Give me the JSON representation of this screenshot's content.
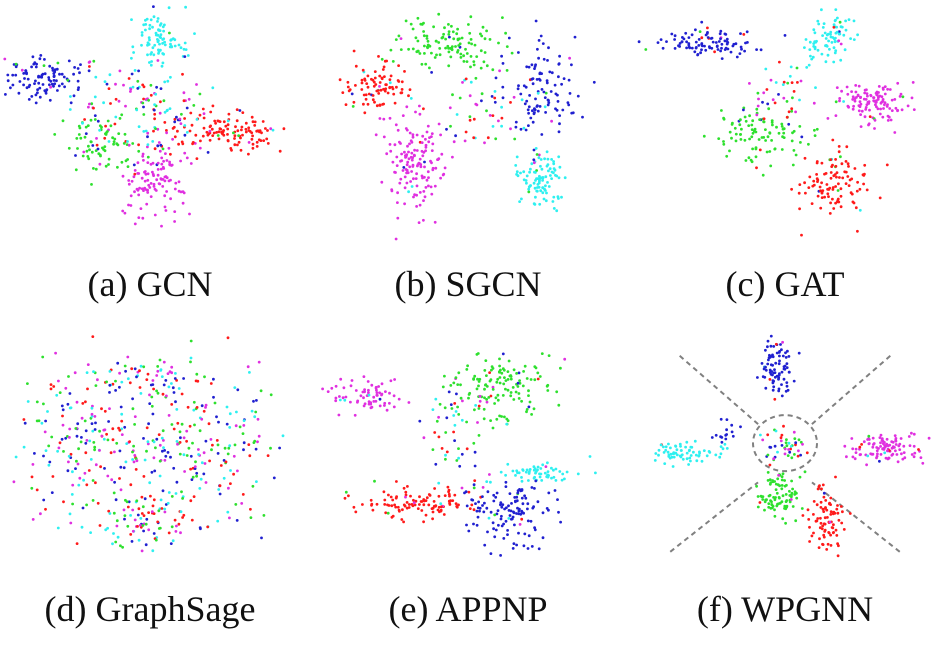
{
  "colors": {
    "red": "#ff1a1a",
    "green": "#2ee02e",
    "blue": "#2020d0",
    "cyan": "#2ef0f0",
    "magenta": "#e030e0",
    "guide": "#808080"
  },
  "chart_data": [
    {
      "type": "scatter",
      "caption": "(a)  GCN",
      "clusters": [
        {
          "color": "blue",
          "center": [
            -0.78,
            -0.42
          ],
          "spread": [
            0.17,
            0.11
          ],
          "count": 110
        },
        {
          "color": "cyan",
          "center": [
            0.08,
            -0.78
          ],
          "spread": [
            0.09,
            0.13
          ],
          "count": 90
        },
        {
          "color": "red",
          "center": [
            0.55,
            0.05
          ],
          "spread": [
            0.2,
            0.09
          ],
          "count": 120
        },
        {
          "color": "green",
          "center": [
            -0.35,
            0.2
          ],
          "spread": [
            0.14,
            0.13
          ],
          "count": 75
        },
        {
          "color": "magenta",
          "center": [
            0.05,
            0.45
          ],
          "spread": [
            0.12,
            0.17
          ],
          "count": 120
        },
        {
          "color": "mixed",
          "center": [
            -0.05,
            -0.15
          ],
          "spread": [
            0.3,
            0.22
          ],
          "count": 130
        }
      ]
    },
    {
      "type": "scatter",
      "caption": "(b)  SGCN",
      "clusters": [
        {
          "color": "green",
          "center": [
            -0.15,
            -0.72
          ],
          "spread": [
            0.2,
            0.11
          ],
          "count": 120
        },
        {
          "color": "red",
          "center": [
            -0.68,
            -0.35
          ],
          "spread": [
            0.12,
            0.11
          ],
          "count": 90
        },
        {
          "color": "magenta",
          "center": [
            -0.38,
            0.35
          ],
          "spread": [
            0.12,
            0.2
          ],
          "count": 150
        },
        {
          "color": "blue",
          "center": [
            0.55,
            -0.3
          ],
          "spread": [
            0.13,
            0.2
          ],
          "count": 110
        },
        {
          "color": "cyan",
          "center": [
            0.52,
            0.45
          ],
          "spread": [
            0.09,
            0.14
          ],
          "count": 100
        },
        {
          "color": "mixed",
          "center": [
            0.1,
            -0.1
          ],
          "spread": [
            0.18,
            0.15
          ],
          "count": 45
        }
      ]
    },
    {
      "type": "scatter",
      "caption": "(c)  GAT",
      "clusters": [
        {
          "color": "blue",
          "center": [
            -0.55,
            -0.72
          ],
          "spread": [
            0.2,
            0.06
          ],
          "count": 100
        },
        {
          "color": "cyan",
          "center": [
            0.35,
            -0.75
          ],
          "spread": [
            0.09,
            0.11
          ],
          "count": 80
        },
        {
          "color": "magenta",
          "center": [
            0.65,
            -0.2
          ],
          "spread": [
            0.16,
            0.09
          ],
          "count": 120
        },
        {
          "color": "green",
          "center": [
            -0.15,
            0.1
          ],
          "spread": [
            0.16,
            0.14
          ],
          "count": 100
        },
        {
          "color": "red",
          "center": [
            0.38,
            0.52
          ],
          "spread": [
            0.13,
            0.13
          ],
          "count": 110
        },
        {
          "color": "mixed",
          "center": [
            -0.05,
            -0.3
          ],
          "spread": [
            0.15,
            0.12
          ],
          "count": 35
        }
      ]
    },
    {
      "type": "scatter",
      "caption": "(d)  GraphSage",
      "clusters": [
        {
          "color": "mixed",
          "center": [
            -0.45,
            -0.1
          ],
          "spread": [
            0.28,
            0.3
          ],
          "count": 190
        },
        {
          "color": "mixed",
          "center": [
            0.4,
            -0.1
          ],
          "spread": [
            0.28,
            0.3
          ],
          "count": 190
        },
        {
          "color": "mixed",
          "center": [
            0.0,
            0.62
          ],
          "spread": [
            0.25,
            0.13
          ],
          "count": 110
        },
        {
          "color": "mixed",
          "center": [
            0.0,
            -0.65
          ],
          "spread": [
            0.2,
            0.12
          ],
          "count": 60
        }
      ]
    },
    {
      "type": "scatter",
      "caption": "(e)  APPNP",
      "clusters": [
        {
          "color": "magenta",
          "center": [
            -0.72,
            -0.5
          ],
          "spread": [
            0.15,
            0.06
          ],
          "count": 70
        },
        {
          "color": "green",
          "center": [
            0.25,
            -0.6
          ],
          "spread": [
            0.18,
            0.14
          ],
          "count": 130
        },
        {
          "color": "cyan",
          "center": [
            0.52,
            0.2
          ],
          "spread": [
            0.15,
            0.05
          ],
          "count": 60
        },
        {
          "color": "red",
          "center": [
            -0.35,
            0.45
          ],
          "spread": [
            0.2,
            0.07
          ],
          "count": 110
        },
        {
          "color": "blue",
          "center": [
            0.3,
            0.55
          ],
          "spread": [
            0.15,
            0.17
          ],
          "count": 130
        },
        {
          "color": "mixed",
          "center": [
            -0.05,
            -0.1
          ],
          "spread": [
            0.12,
            0.25
          ],
          "count": 60
        }
      ]
    },
    {
      "type": "scatter",
      "caption": "(f)  WPGNN",
      "clusters": [
        {
          "color": "blue",
          "center": [
            -0.07,
            -0.75
          ],
          "spread": [
            0.06,
            0.15
          ],
          "count": 85
        },
        {
          "color": "cyan",
          "center": [
            -0.72,
            0.02
          ],
          "spread": [
            0.13,
            0.05
          ],
          "count": 70
        },
        {
          "color": "magenta",
          "center": [
            0.72,
            -0.02
          ],
          "spread": [
            0.15,
            0.06
          ],
          "count": 110
        },
        {
          "color": "green",
          "center": [
            -0.05,
            0.38
          ],
          "spread": [
            0.09,
            0.11
          ],
          "count": 90
        },
        {
          "color": "red",
          "center": [
            0.3,
            0.62
          ],
          "spread": [
            0.07,
            0.15
          ],
          "count": 85
        },
        {
          "color": "mixed",
          "center": [
            0.0,
            -0.05
          ],
          "spread": [
            0.09,
            0.07
          ],
          "count": 45
        },
        {
          "color": "blue",
          "center": [
            -0.45,
            -0.15
          ],
          "spread": [
            0.05,
            0.05
          ],
          "count": 15
        }
      ],
      "guides": {
        "circle": true,
        "dashed_lines": true
      }
    }
  ]
}
